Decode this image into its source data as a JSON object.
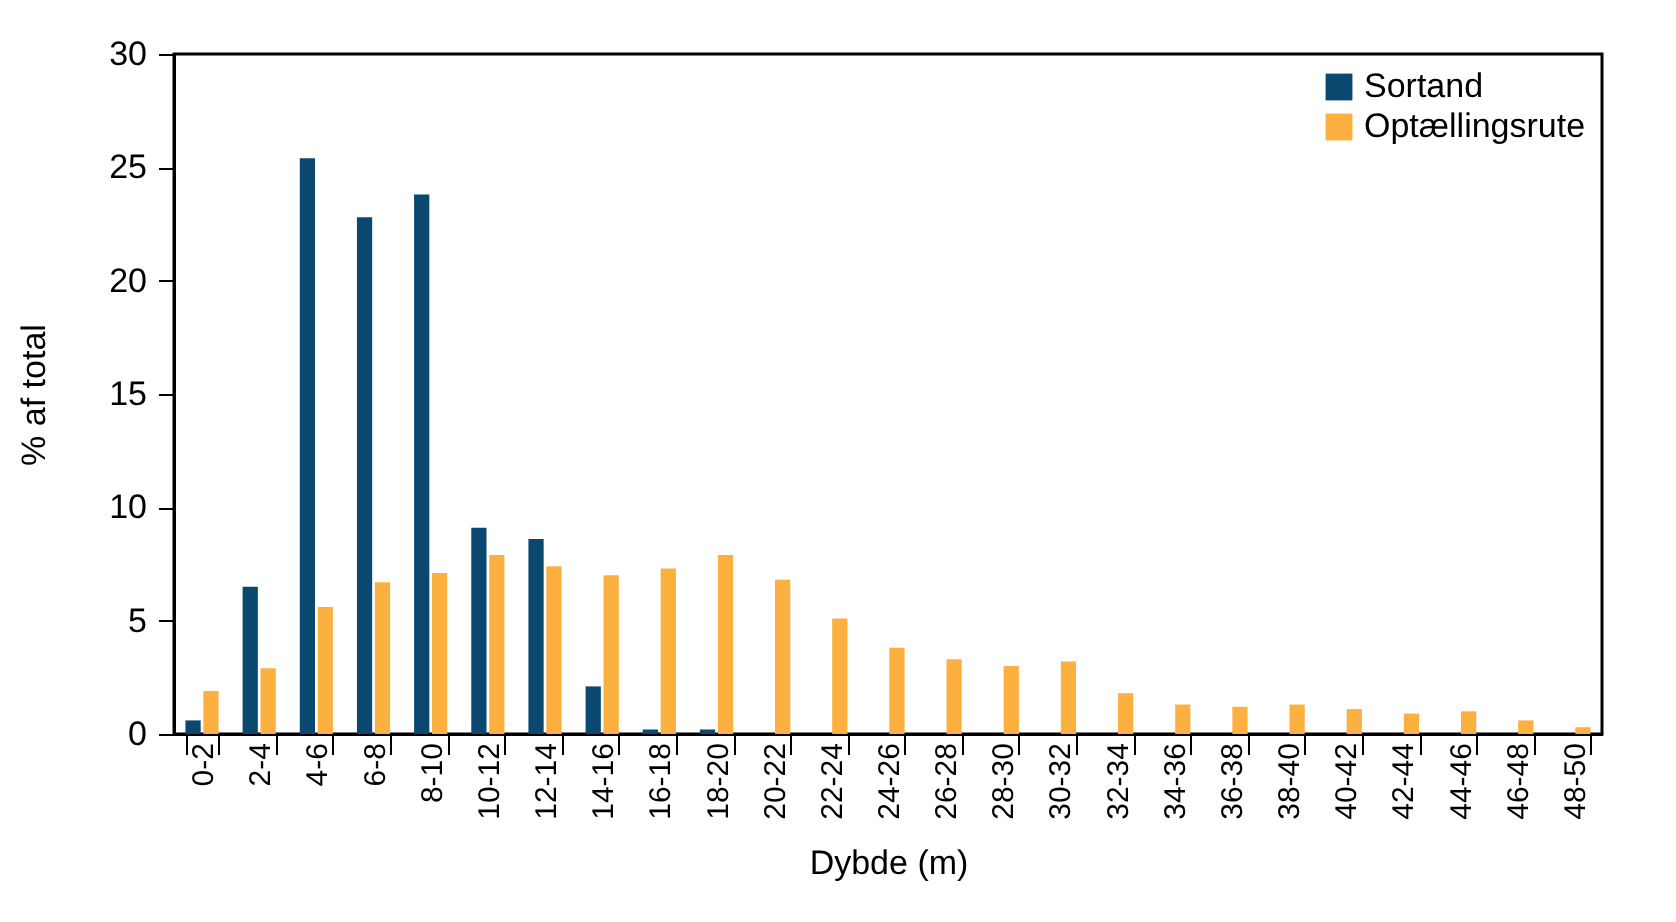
{
  "chart_data": {
    "type": "bar",
    "xlabel": "Dybde (m)",
    "ylabel": "% af total",
    "categories": [
      "0-2",
      "2-4",
      "4-6",
      "6-8",
      "8-10",
      "10-12",
      "12-14",
      "14-16",
      "16-18",
      "18-20",
      "20-22",
      "22-24",
      "24-26",
      "26-28",
      "28-30",
      "30-32",
      "32-34",
      "34-36",
      "36-38",
      "38-40",
      "40-42",
      "42-44",
      "44-46",
      "46-48",
      "48-50"
    ],
    "series": [
      {
        "name": "Sortand",
        "color": "#0b4870",
        "values": [
          0.6,
          6.5,
          25.4,
          22.8,
          23.8,
          9.1,
          8.6,
          2.1,
          0.2,
          0.2,
          null,
          null,
          null,
          null,
          null,
          null,
          null,
          null,
          null,
          null,
          null,
          null,
          null,
          null,
          null
        ]
      },
      {
        "name": "Optællingsrute",
        "color": "#fbb040",
        "values": [
          1.9,
          2.9,
          5.6,
          6.7,
          7.1,
          7.9,
          7.4,
          7.0,
          7.3,
          7.9,
          6.8,
          5.1,
          3.8,
          3.3,
          3.0,
          3.2,
          1.8,
          1.3,
          1.2,
          1.3,
          1.1,
          0.9,
          1.0,
          0.6,
          0.3
        ]
      }
    ],
    "ylim": [
      0,
      30
    ],
    "yticks": [
      0,
      5,
      10,
      15,
      20,
      25,
      30
    ],
    "grid": false,
    "legend": "top right"
  }
}
